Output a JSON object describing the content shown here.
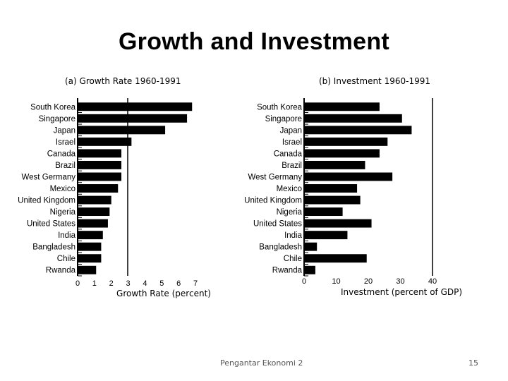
{
  "page": {
    "title": "Growth and Investment",
    "footer_text": "Pengantar Ekonomi 2",
    "page_number": "15"
  },
  "chart_data": [
    {
      "type": "bar",
      "orientation": "horizontal",
      "title": "(a) Growth Rate 1960-1991",
      "xlabel": "Growth Rate (percent)",
      "ylabel": "",
      "xlim": [
        0,
        7
      ],
      "xticks": [
        0,
        1,
        2,
        3,
        4,
        5,
        6,
        7
      ],
      "categories": [
        "South Korea",
        "Singapore",
        "Japan",
        "Israel",
        "Canada",
        "Brazil",
        "West Germany",
        "Mexico",
        "United Kingdom",
        "Nigeria",
        "United States",
        "India",
        "Bangladesh",
        "Chile",
        "Rwanda"
      ],
      "values": [
        6.8,
        6.5,
        5.2,
        3.2,
        2.6,
        2.6,
        2.6,
        2.4,
        2.0,
        1.9,
        1.8,
        1.5,
        1.4,
        1.4,
        1.1
      ],
      "bar_color": "#000000",
      "grid": false
    },
    {
      "type": "bar",
      "orientation": "horizontal",
      "title": "(b) Investment 1960-1991",
      "xlabel": "Investment (percent of GDP)",
      "ylabel": "",
      "xlim": [
        0,
        40
      ],
      "xticks": [
        0,
        10,
        20,
        30,
        40
      ],
      "categories": [
        "South Korea",
        "Singapore",
        "Japan",
        "Israel",
        "Canada",
        "Brazil",
        "West Germany",
        "Mexico",
        "United Kingdom",
        "Nigeria",
        "United States",
        "India",
        "Bangladesh",
        "Chile",
        "Rwanda"
      ],
      "values": [
        23.5,
        30.5,
        33.5,
        26,
        23.5,
        19,
        27.5,
        16.5,
        17.5,
        12,
        21,
        13.5,
        4,
        19.5,
        3.5
      ],
      "bar_color": "#000000",
      "grid": false
    }
  ]
}
